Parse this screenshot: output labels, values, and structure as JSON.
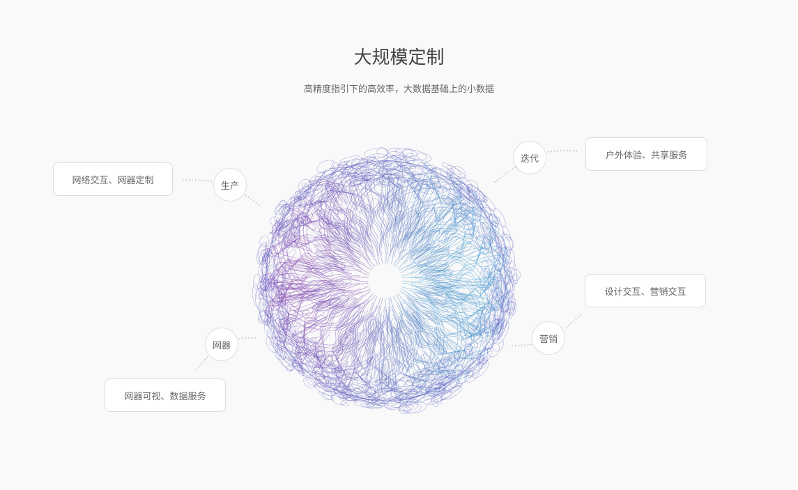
{
  "header": {
    "title": "大规模定制",
    "subtitle": "高精度指引下的高效率，大数据基础上的小数据"
  },
  "nodes": [
    {
      "label": "生产",
      "detail": "网络交互、网器定制"
    },
    {
      "label": "迭代",
      "detail": "户外体验、共享服务"
    },
    {
      "label": "营销",
      "detail": "设计交互、营销交互"
    },
    {
      "label": "网器",
      "detail": "网器可视、数据服务"
    }
  ],
  "colors": {
    "left": "#b03aa8",
    "right": "#3fd6e4",
    "edge": "#5558c0",
    "connector": "#c8c8c8"
  },
  "sphere_icon": "wireframe-sphere"
}
